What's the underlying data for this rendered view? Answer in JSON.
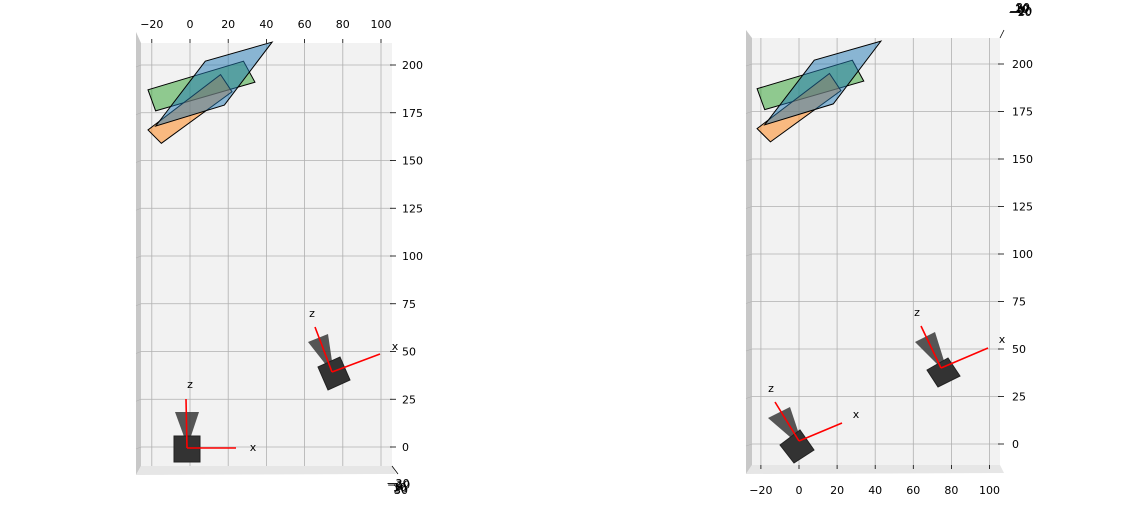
{
  "chart_data": [
    {
      "type": "scatter",
      "title": "",
      "view": "top-down 3D projection",
      "x_ticks": [
        "−20",
        "0",
        "20",
        "40",
        "60",
        "80",
        "100"
      ],
      "y_ticks": [
        "0",
        "25",
        "50",
        "75",
        "100",
        "125",
        "150",
        "175",
        "200"
      ],
      "z_ticks": [
        "−20",
        "−10",
        "0",
        "10",
        "20",
        "30"
      ],
      "xlim": [
        -27,
        106
      ],
      "ylim": [
        -10,
        210
      ],
      "cameras": [
        {
          "x": 0,
          "y": 0,
          "x_axis_label": "x",
          "z_axis_label": "z"
        },
        {
          "x": 75,
          "y": 40,
          "x_axis_label": "x",
          "z_axis_label": "z"
        }
      ],
      "planes": [
        {
          "color": "#2ca02c",
          "corners": [
            [
              -22,
              187
            ],
            [
              -18,
              176
            ],
            [
              34,
              191
            ],
            [
              28,
              202
            ]
          ]
        },
        {
          "color": "#ff7f0e",
          "corners": [
            [
              -22,
              166
            ],
            [
              -15,
              159
            ],
            [
              22,
              186
            ],
            [
              16,
              195
            ]
          ]
        },
        {
          "color": "#1f77b4",
          "corners": [
            [
              -18,
              168
            ],
            [
              8,
              202
            ],
            [
              43,
              212
            ],
            [
              18,
              179
            ]
          ]
        }
      ],
      "grid": true,
      "pane_color": "#f2f2f2"
    },
    {
      "type": "scatter",
      "title": "",
      "view": "rotated 3D projection",
      "x_ticks": [
        "−20",
        "0",
        "20",
        "40",
        "60",
        "80",
        "100"
      ],
      "y_ticks": [
        "0",
        "25",
        "50",
        "75",
        "100",
        "125",
        "150",
        "175",
        "200"
      ],
      "z_ticks": [
        "−20",
        "−10",
        "0",
        "10",
        "20",
        "30"
      ],
      "xlim": [
        -27,
        106
      ],
      "ylim": [
        -10,
        210
      ],
      "cameras": [
        {
          "x": 0,
          "y": 0,
          "x_axis_label": "x",
          "z_axis_label": "z"
        },
        {
          "x": 75,
          "y": 40,
          "x_axis_label": "x",
          "z_axis_label": "z"
        }
      ],
      "planes": [
        {
          "color": "#2ca02c",
          "corners": [
            [
              -22,
              187
            ],
            [
              -18,
              176
            ],
            [
              34,
              191
            ],
            [
              28,
              202
            ]
          ]
        },
        {
          "color": "#ff7f0e",
          "corners": [
            [
              -22,
              166
            ],
            [
              -15,
              159
            ],
            [
              22,
              186
            ],
            [
              16,
              195
            ]
          ]
        },
        {
          "color": "#1f77b4",
          "corners": [
            [
              -18,
              168
            ],
            [
              8,
              202
            ],
            [
              43,
              212
            ],
            [
              18,
              179
            ]
          ]
        }
      ],
      "grid": true,
      "pane_color": "#f2f2f2"
    }
  ]
}
